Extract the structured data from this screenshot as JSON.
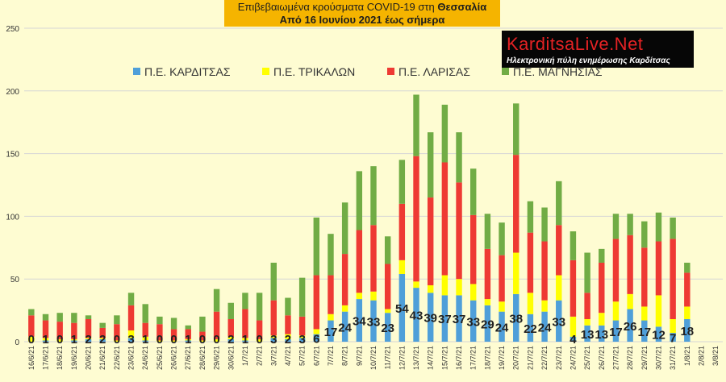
{
  "title": {
    "line1_prefix": "Επιβεβαιωμένα κρούσματα COVID-19 στη ",
    "line1_bold": "Θεσσαλία",
    "line2": "Από 16 Ιουνίου 2021 έως σήμερα"
  },
  "logo": {
    "name": "KarditsaLive.Net",
    "tagline": "Ηλεκτρονική πύλη ενημέρωσης Καρδίτσας"
  },
  "colors": {
    "background": "#fefcd2",
    "grid": "#d6d6d6",
    "karditsa": "#4f9fd9",
    "trikala": "#ffff00",
    "larisa": "#ee3a33",
    "magnisia": "#71ac45",
    "label": "#222222"
  },
  "chart_data": {
    "type": "bar",
    "stacked": true,
    "ylim": [
      0,
      250
    ],
    "yticks": [
      0,
      50,
      100,
      150,
      200,
      250
    ],
    "grid": true,
    "legend_position": "top",
    "categories": [
      "16/6/21",
      "17/6/21",
      "18/6/21",
      "19/6/21",
      "20/6/21",
      "21/6/21",
      "22/6/21",
      "23/6/21",
      "24/6/21",
      "25/6/21",
      "26/6/21",
      "27/6/21",
      "28/6/21",
      "29/6/21",
      "30/6/21",
      "1/7/21",
      "2/7/21",
      "3/7/21",
      "4/7/21",
      "5/7/21",
      "6/7/21",
      "7/7/21",
      "8/7/21",
      "9/7/21",
      "10/7/21",
      "11/7/21",
      "12/7/21",
      "13/7/21",
      "14/7/21",
      "15/7/21",
      "16/7/21",
      "17/7/21",
      "18/7/21",
      "19/7/21",
      "20/7/21",
      "21/7/21",
      "22/7/21",
      "23/7/21",
      "24/7/21",
      "25/7/21",
      "26/7/21",
      "27/7/21",
      "28/7/21",
      "29/7/21",
      "30/7/21",
      "31/7/21",
      "1/8/21",
      "2/8/21",
      "3/8/21"
    ],
    "series": [
      {
        "name": "Π.Ε. ΚΑΡΔΙΤΣΑΣ",
        "color_key": "karditsa",
        "values": [
          0,
          1,
          0,
          1,
          2,
          2,
          0,
          3,
          1,
          0,
          0,
          1,
          0,
          0,
          2,
          1,
          0,
          3,
          2,
          3,
          6,
          17,
          24,
          34,
          33,
          23,
          54,
          43,
          39,
          37,
          37,
          33,
          29,
          24,
          38,
          22,
          24,
          33,
          4,
          13,
          13,
          17,
          26,
          17,
          12,
          7,
          18,
          0,
          0
        ]
      },
      {
        "name": "Π.Ε. ΤΡΙΚΑΛΩΝ",
        "color_key": "trikala",
        "values": [
          4,
          2,
          2,
          1,
          1,
          1,
          1,
          6,
          3,
          1,
          1,
          1,
          1,
          2,
          2,
          2,
          2,
          2,
          4,
          2,
          4,
          5,
          5,
          5,
          7,
          3,
          11,
          5,
          6,
          16,
          13,
          13,
          5,
          8,
          33,
          17,
          9,
          20,
          16,
          5,
          10,
          15,
          12,
          11,
          25,
          11,
          10,
          0,
          0
        ]
      },
      {
        "name": "Π.Ε. ΛΑΡΙΣΑΣ",
        "color_key": "larisa",
        "values": [
          17,
          14,
          14,
          13,
          15,
          8,
          13,
          20,
          11,
          13,
          9,
          8,
          7,
          22,
          14,
          23,
          15,
          28,
          15,
          15,
          43,
          31,
          41,
          50,
          53,
          36,
          45,
          100,
          70,
          90,
          77,
          55,
          40,
          37,
          78,
          48,
          47,
          40,
          45,
          21,
          40,
          50,
          47,
          47,
          43,
          64,
          27,
          0,
          0
        ]
      },
      {
        "name": "Π.Ε. ΜΑΓΝΗΣΙΑΣ",
        "color_key": "magnisia",
        "values": [
          5,
          5,
          7,
          8,
          3,
          4,
          7,
          10,
          15,
          6,
          9,
          3,
          12,
          18,
          13,
          13,
          22,
          30,
          14,
          31,
          46,
          33,
          41,
          47,
          47,
          22,
          35,
          49,
          52,
          46,
          40,
          37,
          28,
          26,
          41,
          25,
          27,
          35,
          23,
          32,
          11,
          20,
          17,
          21,
          23,
          17,
          8,
          0,
          0
        ]
      }
    ],
    "data_labels_series": "Π.Ε. ΚΑΡΔΙΤΣΑΣ"
  }
}
